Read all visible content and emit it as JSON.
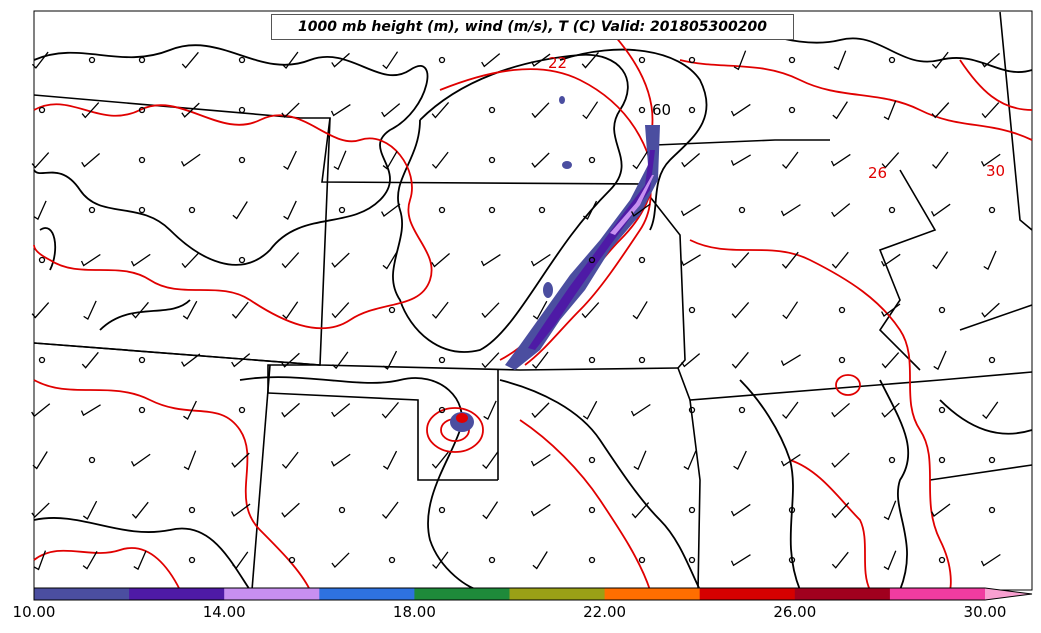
{
  "title": "1000 mb height (m), wind (m/s), T (C) Valid: 201805300200",
  "colorbar": {
    "colors": [
      "#4b4ea0",
      "#4e1aa6",
      "#c78ff0",
      "#2e72e0",
      "#1e8a3a",
      "#9aa016",
      "#ff6e00",
      "#d60000",
      "#a0001e",
      "#f03ca0",
      "#f8a0d0"
    ],
    "tick_labels": [
      "10.00",
      "14.00",
      "18.00",
      "22.00",
      "26.00",
      "30.00"
    ]
  },
  "contour_labels": {
    "red_label_1": "22",
    "red_label_2": "26",
    "red_label_3": "30",
    "black_label_1": "60"
  },
  "colors": {
    "temperature_contour": "#e00000",
    "height_contour": "#000000",
    "state_border": "#000000"
  }
}
